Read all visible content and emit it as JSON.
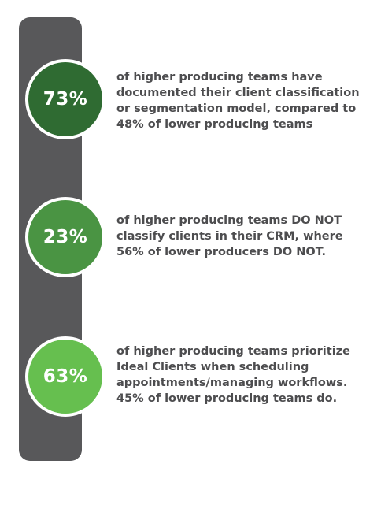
{
  "colors": {
    "bar": "#58585a",
    "text": "#4d4d4f",
    "stat_1": "#2f6b32",
    "stat_2": "#4a9443",
    "stat_3": "#66bf4f"
  },
  "stats": [
    {
      "percent": "73%",
      "lines": [
        "of higher producing teams have",
        "documented their client classification",
        "or segmentation model, compared to",
        "48% of lower producing teams"
      ]
    },
    {
      "percent": "23%",
      "lines": [
        "of higher producing teams DO NOT",
        "classify clients in their CRM, where",
        "56% of lower producers DO NOT."
      ]
    },
    {
      "percent": "63%",
      "lines": [
        "of higher producing teams prioritize",
        "Ideal Clients when scheduling",
        "appointments/managing workflows.",
        "45% of lower producing teams do."
      ]
    }
  ]
}
